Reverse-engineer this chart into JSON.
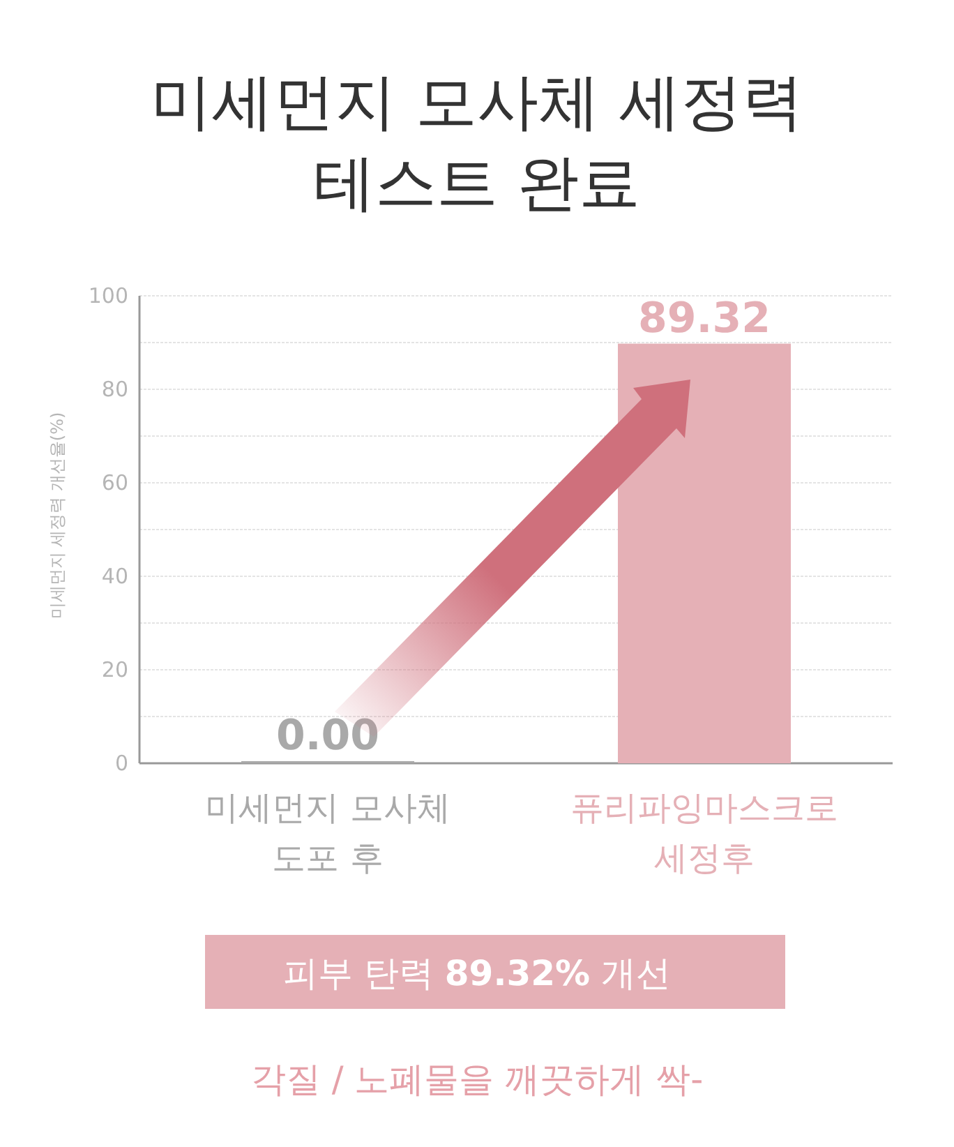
{
  "chart_data": {
    "type": "bar",
    "title": "미세먼지 모사체 세정력 테스트 완료",
    "ylabel": "미세먼지 세정력 개선율(%)",
    "categories": [
      "미세먼지 모사체 도포 후",
      "퓨리파잉마스크로 세정후"
    ],
    "values": [
      0.0,
      89.32
    ],
    "colors": [
      "#a9a9a9",
      "#e5b0b6"
    ],
    "value_labels": [
      "0.00",
      "89.32"
    ],
    "ylim": [
      0,
      100
    ],
    "yticks": [
      0,
      {
        "value": 10,
        "label": null
      },
      20,
      {
        "value": 30,
        "label": null
      },
      40,
      {
        "value": 50,
        "label": null
      },
      60,
      {
        "value": 70,
        "label": null
      },
      80,
      {
        "value": 90,
        "label": null
      },
      100
    ],
    "grid": "y",
    "annotations": [
      "피부 탄력 **89.32%** 개선",
      "각질 / 노폐물을 깨끗하게 싹-"
    ]
  }
}
